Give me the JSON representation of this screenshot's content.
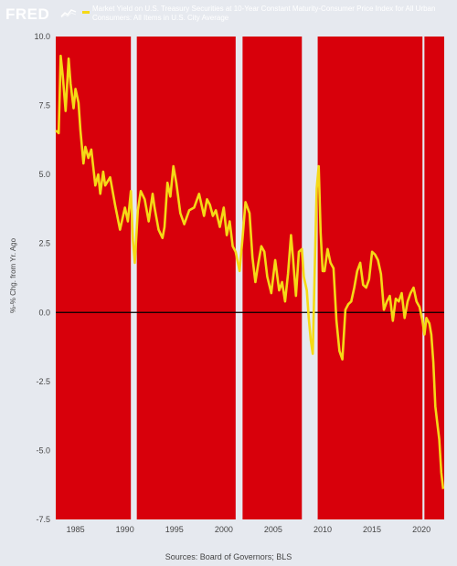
{
  "header": {
    "logo_text": "FRED",
    "logo_icon": "trend-line-icon",
    "legend_label": "Market Yield on U.S. Treasury Securities at 10-Year Constant Maturity-Consumer Price Index for All Urban Consumers: All Items in U.S. City Average"
  },
  "source_text": "Sources: Board of Governors; BLS",
  "colors": {
    "background": "#e6e9ef",
    "plot_fill": "#d8000b",
    "recession_band": "#e6e9ef",
    "line": "#f5d916",
    "zero_line": "#000000"
  },
  "chart_data": {
    "type": "line",
    "title": "",
    "ylabel": "%-% Chg. from Yr. Ago",
    "xlabel": "",
    "xlim": [
      1983.0,
      2022.3
    ],
    "ylim": [
      -7.5,
      10.0
    ],
    "x_ticks": [
      1985,
      1990,
      1995,
      2000,
      2005,
      2010,
      2015,
      2020
    ],
    "y_ticks": [
      -7.5,
      -5.0,
      -2.5,
      0.0,
      2.5,
      5.0,
      7.5,
      10.0
    ],
    "y_tick_labels": [
      "-7.5",
      "-5.0",
      "-2.5",
      "0.0",
      "2.5",
      "5.0",
      "7.5",
      "10.0"
    ],
    "recessions": [
      [
        1990.6,
        1991.2
      ],
      [
        2001.2,
        2001.9
      ],
      [
        2007.9,
        2009.5
      ],
      [
        2020.1,
        2020.3
      ]
    ],
    "reference_line": 0.0,
    "series": [
      {
        "x": [
          1983.0,
          1983.3,
          1983.5,
          1983.7,
          1984.0,
          1984.3,
          1984.5,
          1984.8,
          1985.0,
          1985.3,
          1985.5,
          1985.8,
          1986.0,
          1986.3,
          1986.6,
          1987.0,
          1987.3,
          1987.5,
          1987.8,
          1988.0,
          1988.5,
          1989.0,
          1989.5,
          1990.0,
          1990.3,
          1990.6,
          1990.8,
          1991.0,
          1991.3,
          1991.6,
          1992.0,
          1992.4,
          1992.8,
          1993.0,
          1993.4,
          1993.8,
          1994.0,
          1994.3,
          1994.6,
          1994.9,
          1995.2,
          1995.6,
          1996.0,
          1996.5,
          1997.0,
          1997.5,
          1998.0,
          1998.3,
          1998.6,
          1998.9,
          1999.2,
          1999.6,
          2000.0,
          2000.3,
          2000.6,
          2000.9,
          2001.2,
          2001.6,
          2001.9,
          2002.2,
          2002.6,
          2002.9,
          2003.2,
          2003.5,
          2003.8,
          2004.1,
          2004.4,
          2004.8,
          2005.2,
          2005.6,
          2005.9,
          2006.2,
          2006.5,
          2006.8,
          2007.0,
          2007.3,
          2007.6,
          2007.9,
          2008.1,
          2008.4,
          2008.6,
          2008.8,
          2009.0,
          2009.2,
          2009.4,
          2009.6,
          2009.8,
          2010.0,
          2010.2,
          2010.5,
          2010.8,
          2011.1,
          2011.4,
          2011.7,
          2012.0,
          2012.3,
          2012.6,
          2012.9,
          2013.2,
          2013.5,
          2013.8,
          2014.1,
          2014.4,
          2014.7,
          2015.0,
          2015.3,
          2015.6,
          2015.9,
          2016.2,
          2016.5,
          2016.8,
          2017.1,
          2017.4,
          2017.7,
          2018.0,
          2018.3,
          2018.6,
          2018.9,
          2019.2,
          2019.5,
          2019.8,
          2020.1,
          2020.3,
          2020.5,
          2020.8,
          2021.0,
          2021.2,
          2021.4,
          2021.6,
          2021.8,
          2022.0,
          2022.2
        ],
        "values": [
          6.6,
          6.5,
          9.3,
          8.6,
          7.3,
          9.2,
          8.3,
          7.4,
          8.1,
          7.6,
          6.6,
          5.4,
          6.0,
          5.6,
          5.9,
          4.6,
          5.0,
          4.3,
          5.1,
          4.6,
          4.9,
          3.9,
          3.0,
          3.8,
          3.3,
          4.4,
          2.6,
          1.8,
          3.7,
          4.4,
          4.1,
          3.3,
          4.3,
          3.8,
          3.0,
          2.7,
          3.1,
          4.7,
          4.2,
          5.3,
          4.7,
          3.6,
          3.2,
          3.7,
          3.8,
          4.3,
          3.5,
          4.1,
          3.9,
          3.5,
          3.7,
          3.1,
          3.8,
          2.8,
          3.3,
          2.4,
          2.2,
          1.5,
          2.7,
          4.0,
          3.6,
          2.0,
          1.1,
          1.8,
          2.4,
          2.2,
          1.3,
          0.7,
          1.9,
          0.8,
          1.1,
          0.4,
          1.4,
          2.8,
          2.0,
          0.6,
          2.2,
          2.3,
          1.3,
          0.8,
          -0.2,
          -1.0,
          -1.5,
          1.5,
          4.5,
          5.3,
          2.9,
          1.5,
          1.5,
          2.3,
          1.8,
          1.6,
          -0.3,
          -1.4,
          -1.7,
          0.1,
          0.3,
          0.4,
          0.9,
          1.5,
          1.8,
          1.0,
          0.9,
          1.2,
          2.2,
          2.1,
          1.9,
          1.4,
          0.1,
          0.4,
          0.6,
          -0.3,
          0.5,
          0.4,
          0.7,
          -0.2,
          0.4,
          0.7,
          0.9,
          0.4,
          0.2,
          -0.3,
          -0.8,
          -0.2,
          -0.4,
          -0.8,
          -1.8,
          -3.4,
          -4.0,
          -4.6,
          -5.8,
          -6.4
        ]
      }
    ]
  }
}
